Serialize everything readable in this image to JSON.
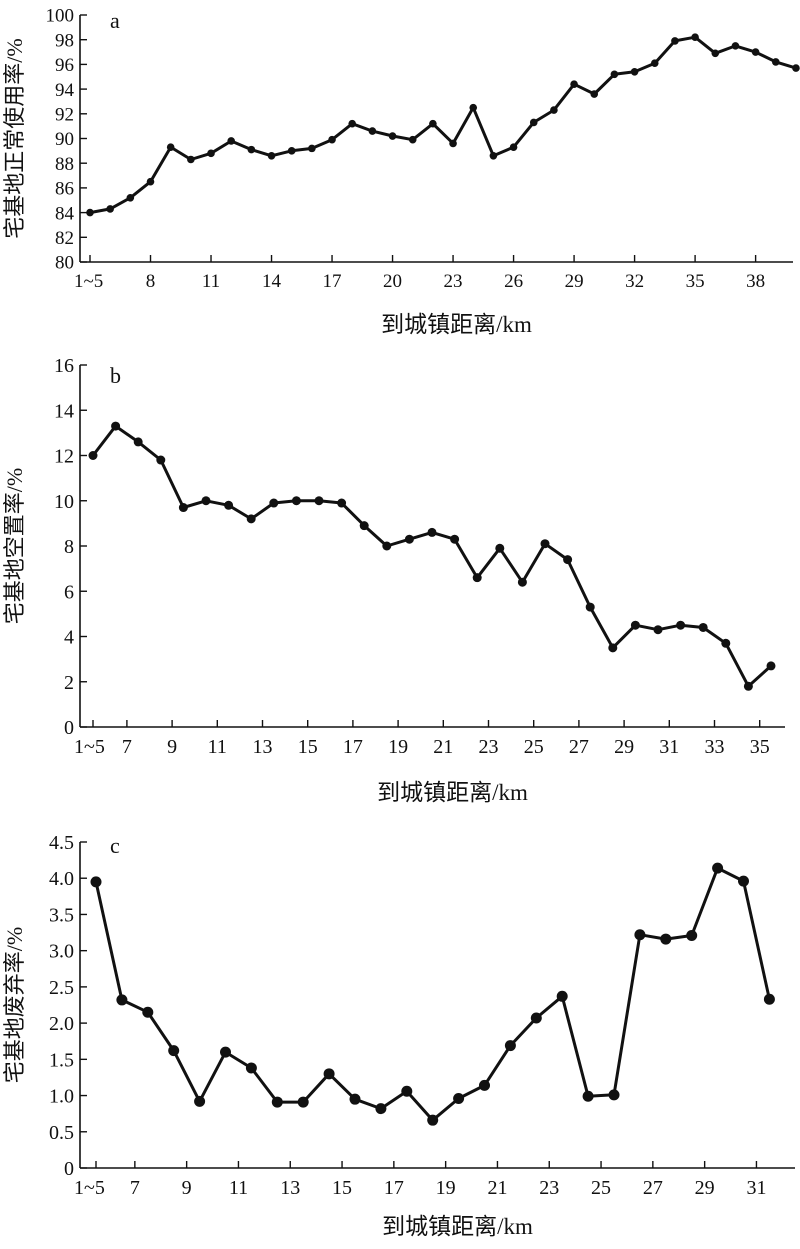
{
  "chart_data": [
    {
      "panel_label": "a",
      "type": "line",
      "xlabel": "到城镇距离/km",
      "ylabel": "宅基地正常使用率/%",
      "ylim": [
        80,
        100
      ],
      "yticks": [
        80,
        82,
        84,
        86,
        88,
        90,
        92,
        94,
        96,
        98,
        100
      ],
      "categories": [
        "1~5",
        "6",
        "7",
        "8",
        "9",
        "10",
        "11",
        "12",
        "13",
        "14",
        "15",
        "16",
        "17",
        "18",
        "19",
        "20",
        "21",
        "22",
        "23",
        "24",
        "25",
        "26",
        "27",
        "28",
        "29",
        "30",
        "31",
        "32",
        "33",
        "34",
        "35",
        "36",
        "37",
        "38",
        "39",
        "40"
      ],
      "xticklabels": [
        "1~5",
        "8",
        "11",
        "14",
        "17",
        "20",
        "23",
        "26",
        "29",
        "32",
        "35",
        "38"
      ],
      "xtick_index": [
        0,
        3,
        6,
        9,
        12,
        15,
        18,
        21,
        24,
        27,
        30,
        33
      ],
      "values": [
        84.0,
        84.3,
        85.2,
        86.5,
        89.3,
        88.3,
        88.8,
        89.8,
        89.1,
        88.6,
        89.0,
        89.2,
        89.9,
        91.2,
        90.6,
        90.2,
        89.9,
        91.2,
        89.6,
        92.5,
        88.6,
        89.3,
        91.3,
        92.3,
        94.4,
        93.6,
        95.2,
        95.4,
        96.1,
        97.9,
        98.2,
        96.9,
        97.5,
        97.0,
        96.2,
        95.7
      ]
    },
    {
      "panel_label": "b",
      "type": "line",
      "xlabel": "到城镇距离/km",
      "ylabel": "宅基地空置率/%",
      "ylim": [
        0,
        16
      ],
      "yticks": [
        0,
        2,
        4,
        6,
        8,
        10,
        12,
        14,
        16
      ],
      "categories": [
        "1~5",
        "6",
        "7",
        "8",
        "9",
        "10",
        "11",
        "12",
        "13",
        "14",
        "15",
        "16",
        "17",
        "18",
        "19",
        "20",
        "21",
        "22",
        "23",
        "24",
        "25",
        "26",
        "27",
        "28",
        "29",
        "30",
        "31",
        "32",
        "33",
        "34",
        "35"
      ],
      "xticklabels": [
        "1~5",
        "7",
        "9",
        "11",
        "13",
        "15",
        "17",
        "19",
        "21",
        "23",
        "25",
        "27",
        "29",
        "31",
        "33",
        "35"
      ],
      "xtick_index": [
        0,
        1.5,
        3.5,
        5.5,
        7.5,
        9.5,
        11.5,
        13.5,
        15.5,
        17.5,
        19.5,
        21.5,
        23.5,
        25.5,
        27.5,
        29.5
      ],
      "values": [
        12.0,
        13.3,
        12.6,
        11.8,
        9.7,
        10.0,
        9.8,
        9.2,
        9.9,
        10.0,
        10.0,
        9.9,
        8.9,
        8.0,
        8.3,
        8.6,
        8.3,
        6.6,
        7.9,
        6.4,
        8.1,
        7.4,
        5.3,
        3.5,
        4.5,
        4.3,
        4.5,
        4.4,
        3.7,
        1.8,
        2.7
      ]
    },
    {
      "panel_label": "c",
      "type": "line",
      "xlabel": "到城镇距离/km",
      "ylabel": "宅基地废弃率/%",
      "ylim": [
        0,
        4.5
      ],
      "yticks": [
        "0",
        "0.5",
        "1.0",
        "1.5",
        "2.0",
        "2.5",
        "3.0",
        "3.5",
        "4.0",
        "4.5"
      ],
      "categories": [
        "1~5",
        "6",
        "7",
        "8",
        "9",
        "10",
        "11",
        "12",
        "13",
        "14",
        "15",
        "16",
        "17",
        "18",
        "19",
        "20",
        "21",
        "22",
        "23",
        "24",
        "25",
        "26",
        "27",
        "28",
        "29",
        "30",
        "31"
      ],
      "xticklabels": [
        "1~5",
        "7",
        "9",
        "11",
        "13",
        "15",
        "17",
        "19",
        "21",
        "23",
        "25",
        "27",
        "29",
        "31"
      ],
      "xtick_index": [
        0,
        1.5,
        3.5,
        5.5,
        7.5,
        9.5,
        11.5,
        13.5,
        15.5,
        17.5,
        19.5,
        21.5,
        23.5,
        25.5
      ],
      "values": [
        3.95,
        2.32,
        2.15,
        1.62,
        0.92,
        1.6,
        1.38,
        0.91,
        0.91,
        1.3,
        0.95,
        0.82,
        1.06,
        0.66,
        0.96,
        1.14,
        1.69,
        2.07,
        2.37,
        0.99,
        1.01,
        3.22,
        3.16,
        3.21,
        4.14,
        3.96,
        2.33
      ]
    }
  ]
}
